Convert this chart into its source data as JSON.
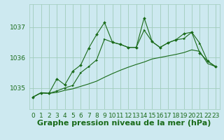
{
  "xlabel": "Graphe pression niveau de la mer (hPa)",
  "background_color": "#cde9f0",
  "plot_bg_color": "#cde9f0",
  "grid_color": "#a0ccbb",
  "line_color": "#1a6b1a",
  "xlim": [
    -0.5,
    23.5
  ],
  "ylim": [
    1034.3,
    1037.75
  ],
  "yticks": [
    1035,
    1036,
    1037
  ],
  "xticks": [
    0,
    1,
    2,
    3,
    4,
    5,
    6,
    7,
    8,
    9,
    10,
    11,
    12,
    13,
    14,
    15,
    16,
    17,
    18,
    19,
    20,
    21,
    22,
    23
  ],
  "x": [
    0,
    1,
    2,
    3,
    4,
    5,
    6,
    7,
    8,
    9,
    10,
    11,
    12,
    13,
    14,
    15,
    16,
    17,
    18,
    19,
    20,
    21,
    22,
    23
  ],
  "y_main": [
    1034.7,
    1034.84,
    1034.82,
    1035.3,
    1035.1,
    1035.55,
    1035.75,
    1036.3,
    1036.75,
    1037.15,
    1036.5,
    1036.43,
    1036.33,
    1036.33,
    1037.3,
    1036.52,
    1036.33,
    1036.48,
    1036.58,
    1036.78,
    1036.83,
    1036.15,
    1035.88,
    1035.7
  ],
  "y_upper": [
    1034.7,
    1034.84,
    1034.82,
    1034.9,
    1035.0,
    1035.08,
    1035.5,
    1035.7,
    1035.92,
    1036.6,
    1036.5,
    1036.43,
    1036.33,
    1036.33,
    1036.9,
    1036.52,
    1036.33,
    1036.48,
    1036.58,
    1036.62,
    1036.83,
    1036.47,
    1035.88,
    1035.7
  ],
  "y_low": [
    1034.7,
    1034.84,
    1034.82,
    1034.85,
    1034.92,
    1034.97,
    1035.05,
    1035.13,
    1035.22,
    1035.35,
    1035.47,
    1035.58,
    1035.68,
    1035.77,
    1035.85,
    1035.95,
    1036.0,
    1036.05,
    1036.1,
    1036.16,
    1036.25,
    1036.2,
    1035.8,
    1035.7
  ],
  "xlabel_fontsize": 8,
  "tick_fontsize": 6.5
}
